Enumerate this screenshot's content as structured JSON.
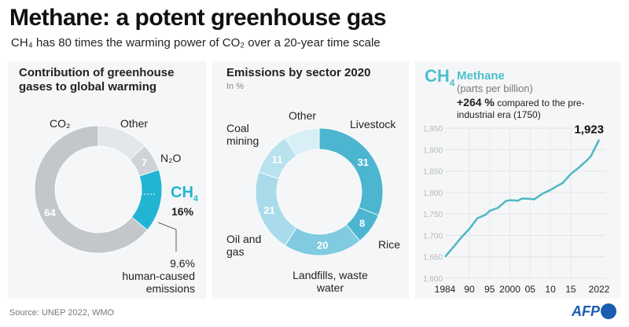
{
  "title": "Methane: a potent greenhouse gas",
  "subtitle": "CH₄ has 80 times the warming power of CO₂ over a 20-year time scale",
  "source": "Source: UNEP 2022, WMO",
  "logo": "AFP",
  "chart_data": [
    {
      "type": "pie",
      "title": "Contribution of greenhouse gases to global warming",
      "unit": "%",
      "slices": [
        {
          "name": "Other",
          "value": 13,
          "color": "#e3e6ea"
        },
        {
          "name": "N₂O",
          "value": 7,
          "label": "7",
          "color": "#cfd3d8"
        },
        {
          "name": "CH₄",
          "value": 16,
          "label": "16%",
          "color": "#22b5d3"
        },
        {
          "name": "CO₂",
          "value": 64,
          "label": "64",
          "color": "#c3c7cc"
        }
      ],
      "annotation": {
        "value": "9.6%",
        "text": "human-caused emissions"
      },
      "ch4_label": "CH",
      "ch4_sub": "4"
    },
    {
      "type": "pie",
      "title": "Emissions by sector 2020",
      "subtitle": "In %",
      "slices": [
        {
          "name": "Livestock",
          "value": 31,
          "color": "#4cb6d0"
        },
        {
          "name": "Rice",
          "value": 8,
          "color": "#4cb6d0"
        },
        {
          "name": "Landfills, waste water",
          "value": 20,
          "color": "#80cbe0"
        },
        {
          "name": "Oil and gas",
          "value": 21,
          "color": "#a9dbea"
        },
        {
          "name": "Coal mining",
          "value": 11,
          "color": "#b9e2ef"
        },
        {
          "name": "Other",
          "value": 9,
          "color": "#d9eff6"
        }
      ]
    },
    {
      "type": "line",
      "title": "Methane",
      "formula": "CH",
      "formula_sub": "4",
      "unit": "(parts per billion)",
      "note_bold": "+264 %",
      "note": " compared to the pre-industrial era (1750)",
      "ylim": [
        1600,
        1950
      ],
      "yticks": [
        "1,600",
        "1,650",
        "1,700",
        "1,750",
        "1,800",
        "1,850",
        "1,900",
        "1,950"
      ],
      "xticks": [
        {
          "v": 1984,
          "l": "1984"
        },
        {
          "v": 1990,
          "l": "90"
        },
        {
          "v": 1995,
          "l": "95"
        },
        {
          "v": 2000,
          "l": "2000"
        },
        {
          "v": 2005,
          "l": "05"
        },
        {
          "v": 2010,
          "l": "10"
        },
        {
          "v": 2015,
          "l": "15"
        },
        {
          "v": 2022,
          "l": "2022"
        }
      ],
      "grid": true,
      "color": "#4cb8c4",
      "last_label": "1,923",
      "x": [
        1984,
        1986,
        1988,
        1990,
        1992,
        1994,
        1995,
        1997,
        1999,
        2000,
        2002,
        2003,
        2005,
        2006,
        2008,
        2010,
        2012,
        2013,
        2015,
        2017,
        2019,
        2020,
        2021,
        2022
      ],
      "y": [
        1650,
        1672,
        1695,
        1715,
        1740,
        1748,
        1757,
        1764,
        1780,
        1782,
        1781,
        1786,
        1785,
        1784,
        1797,
        1806,
        1817,
        1822,
        1843,
        1858,
        1875,
        1885,
        1904,
        1923
      ]
    }
  ]
}
